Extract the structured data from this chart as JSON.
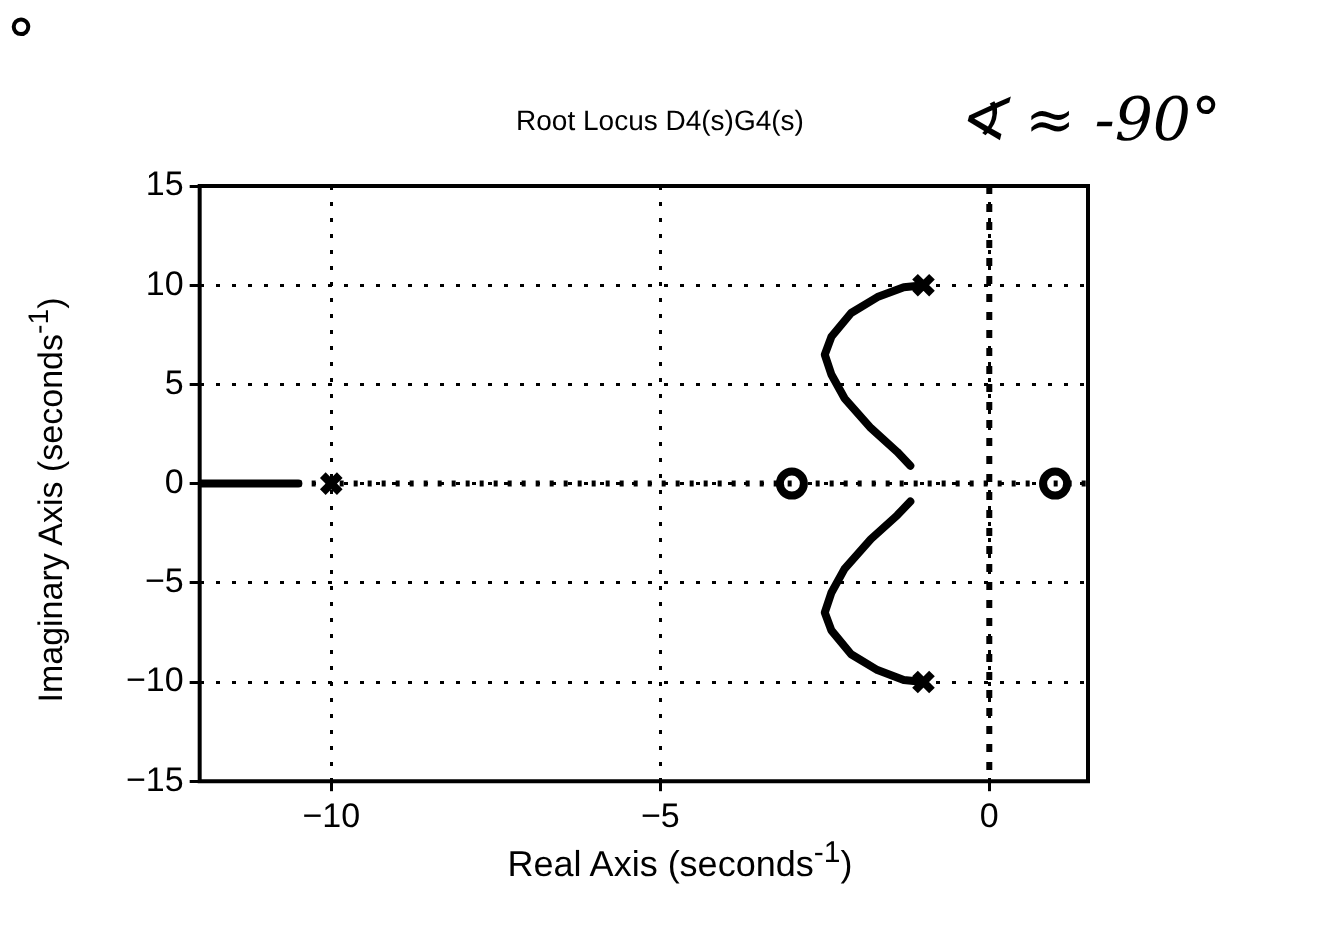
{
  "chart_data": {
    "type": "line",
    "title": "Root Locus D4(s)G4(s)",
    "xlabel": "Real Axis (seconds$^{-1}$)",
    "ylabel": "Imaginary Axis (seconds$^{-1}$)",
    "annotations": [
      "∢ ≈ -90°",
      "°"
    ],
    "xlim": [
      -12,
      1.5
    ],
    "xticks": [
      -10,
      -5,
      0
    ],
    "ylim": [
      -15,
      15
    ],
    "yticks": [
      -15,
      -10,
      -5,
      0,
      5,
      10,
      15
    ],
    "grid": true,
    "ref_lines": [
      {
        "axis": "y",
        "value": 0,
        "line_style": "dotted",
        "color": "#000000"
      },
      {
        "axis": "x",
        "value": 0,
        "line_style": "dashed",
        "color": "#000000"
      }
    ],
    "series": [
      {
        "color": "#000000",
        "marker": "none",
        "x": [
          -12,
          -10.5
        ],
        "values": [
          0,
          0
        ]
      },
      {
        "color": "#000000",
        "marker": "none",
        "x": [
          -1,
          -1.3,
          -1.7,
          -2.1,
          -2.4,
          -2.5,
          -2.4,
          -2.2,
          -1.8,
          -1.4,
          -1.2
        ],
        "values": [
          10,
          9.9,
          9.4,
          8.6,
          7.4,
          6.5,
          5.5,
          4.3,
          2.8,
          1.6,
          0.9
        ]
      },
      {
        "color": "#000000",
        "marker": "none",
        "x": [
          -1,
          -1.3,
          -1.7,
          -2.1,
          -2.4,
          -2.5,
          -2.4,
          -2.2,
          -1.8,
          -1.4,
          -1.2
        ],
        "values": [
          -10,
          -9.9,
          -9.4,
          -8.6,
          -7.4,
          -6.5,
          -5.5,
          -4.3,
          -2.8,
          -1.6,
          -0.9
        ]
      },
      {
        "type": "scatter",
        "color": "#000000",
        "marker": "cross",
        "x": [
          -10,
          -1,
          -1
        ],
        "values": [
          0,
          10,
          -10
        ]
      },
      {
        "type": "scatter",
        "color": "#000000",
        "marker": "circle",
        "x": [
          -3,
          1
        ],
        "values": [
          0,
          0
        ]
      }
    ]
  }
}
